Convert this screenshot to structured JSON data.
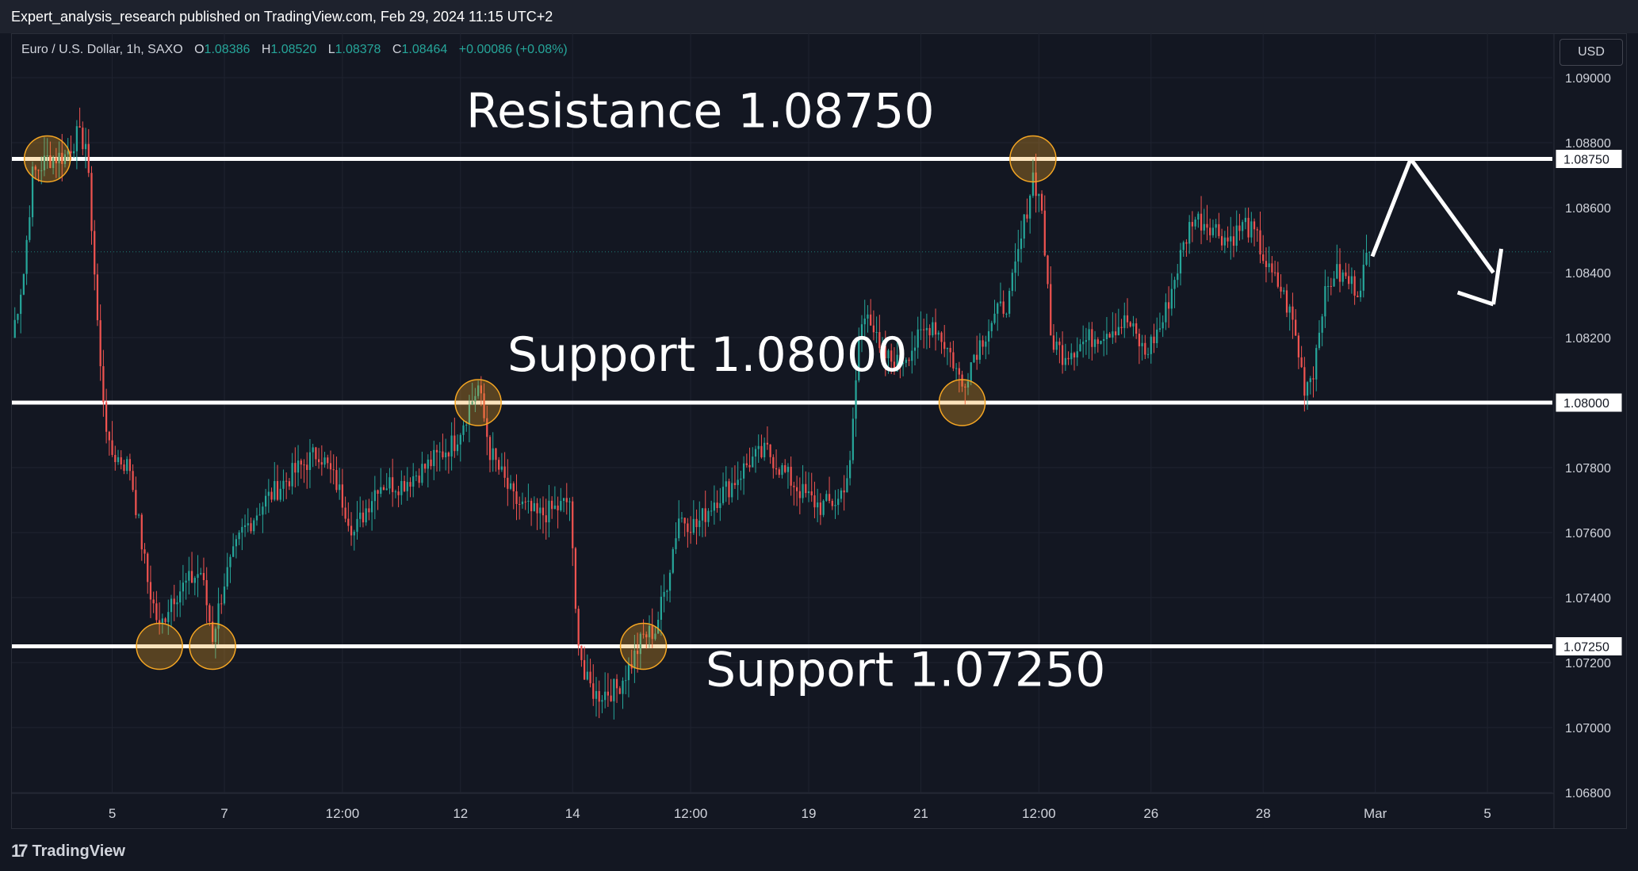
{
  "header": {
    "published": "Expert_analysis_research published on TradingView.com, Feb 29, 2024 11:15 UTC+2"
  },
  "legend": {
    "symbol": "Euro / U.S. Dollar, 1h, SAXO",
    "open_label": "O",
    "open": "1.08386",
    "high_label": "H",
    "high": "1.08520",
    "low_label": "L",
    "low": "1.08378",
    "close_label": "C",
    "close": "1.08464",
    "change": "+0.00086 (+0.08%)"
  },
  "currency_button": "USD",
  "branding": {
    "logo_icon": "17",
    "logo_text": "TradingView"
  },
  "colors": {
    "background": "#131722",
    "up_candle": "#26a69a",
    "down_candle": "#ef5350",
    "level_line": "#ffffff",
    "highlight_circle": "#f5a623",
    "axis_text": "#d1d4dc"
  },
  "chart_data": {
    "type": "candlestick",
    "y_axis": {
      "ylim": [
        1.068,
        1.0905
      ],
      "ticks": [
        "1.09000",
        "1.08800",
        "1.08600",
        "1.08400",
        "1.08200",
        "1.08000",
        "1.07800",
        "1.07600",
        "1.07400",
        "1.07200",
        "1.07000",
        "1.06800"
      ],
      "tick_values": [
        1.09,
        1.088,
        1.086,
        1.084,
        1.082,
        1.08,
        1.078,
        1.076,
        1.074,
        1.072,
        1.07,
        1.068
      ]
    },
    "x_axis": {
      "labels": [
        "5",
        "7",
        "12:00",
        "12",
        "14",
        "12:00",
        "19",
        "21",
        "12:00",
        "26",
        "28",
        "Mar",
        "5"
      ],
      "label_index": [
        34,
        72,
        112,
        152,
        190,
        230,
        270,
        308,
        348,
        386,
        424,
        462,
        500
      ]
    },
    "price_labels": [
      {
        "text": "1.08750",
        "value": 1.0875
      },
      {
        "text": "1.08000",
        "value": 1.08
      },
      {
        "text": "1.07250",
        "value": 1.0725
      }
    ],
    "horizontal_levels": [
      1.0875,
      1.08,
      1.0725
    ],
    "annotations": [
      {
        "text": "Resistance 1.08750",
        "value": 1.0875
      },
      {
        "text": "Support 1.08000",
        "value": 1.08
      },
      {
        "text": "Support 1.07250",
        "value": 1.0725
      }
    ],
    "highlight_points": [
      {
        "index": 12,
        "value": 1.0875
      },
      {
        "index": 50,
        "value": 1.0725
      },
      {
        "index": 68,
        "value": 1.0725
      },
      {
        "index": 158,
        "value": 1.08
      },
      {
        "index": 214,
        "value": 1.0725
      },
      {
        "index": 322,
        "value": 1.08
      },
      {
        "index": 346,
        "value": 1.0875
      }
    ],
    "current_price": 1.08464,
    "projection": [
      {
        "index": 461,
        "value": 1.0845
      },
      {
        "index": 474,
        "value": 1.0875
      },
      {
        "index": 502,
        "value": 1.084
      }
    ],
    "bars_total": 522,
    "close_path": [
      [
        0,
        1.082
      ],
      [
        4,
        1.084
      ],
      [
        7,
        1.087
      ],
      [
        12,
        1.0875
      ],
      [
        18,
        1.0876
      ],
      [
        22,
        1.0882
      ],
      [
        25,
        1.088
      ],
      [
        27,
        1.0855
      ],
      [
        30,
        1.081
      ],
      [
        33,
        1.0785
      ],
      [
        40,
        1.078
      ],
      [
        46,
        1.0745
      ],
      [
        50,
        1.073
      ],
      [
        54,
        1.074
      ],
      [
        60,
        1.0745
      ],
      [
        64,
        1.0748
      ],
      [
        68,
        1.0728
      ],
      [
        72,
        1.0745
      ],
      [
        78,
        1.076
      ],
      [
        86,
        1.077
      ],
      [
        95,
        1.0778
      ],
      [
        104,
        1.0785
      ],
      [
        110,
        1.0775
      ],
      [
        116,
        1.076
      ],
      [
        124,
        1.0775
      ],
      [
        132,
        1.0775
      ],
      [
        140,
        1.078
      ],
      [
        150,
        1.0788
      ],
      [
        158,
        1.0805
      ],
      [
        162,
        1.0785
      ],
      [
        170,
        1.077
      ],
      [
        178,
        1.0765
      ],
      [
        186,
        1.0768
      ],
      [
        189,
        1.077
      ],
      [
        191,
        1.0735
      ],
      [
        194,
        1.0715
      ],
      [
        198,
        1.071
      ],
      [
        205,
        1.0712
      ],
      [
        210,
        1.072
      ],
      [
        214,
        1.0728
      ],
      [
        218,
        1.073
      ],
      [
        222,
        1.0745
      ],
      [
        226,
        1.0765
      ],
      [
        232,
        1.0762
      ],
      [
        238,
        1.077
      ],
      [
        244,
        1.0775
      ],
      [
        250,
        1.0782
      ],
      [
        256,
        1.0785
      ],
      [
        262,
        1.0778
      ],
      [
        268,
        1.0772
      ],
      [
        274,
        1.0768
      ],
      [
        280,
        1.077
      ],
      [
        284,
        1.078
      ],
      [
        287,
        1.082
      ],
      [
        290,
        1.083
      ],
      [
        294,
        1.0815
      ],
      [
        300,
        1.0812
      ],
      [
        306,
        1.0818
      ],
      [
        312,
        1.0825
      ],
      [
        318,
        1.0815
      ],
      [
        322,
        1.0805
      ],
      [
        326,
        1.0815
      ],
      [
        332,
        1.0825
      ],
      [
        338,
        1.0832
      ],
      [
        342,
        1.085
      ],
      [
        346,
        1.087
      ],
      [
        349,
        1.086
      ],
      [
        352,
        1.082
      ],
      [
        356,
        1.0815
      ],
      [
        362,
        1.0818
      ],
      [
        370,
        1.0822
      ],
      [
        378,
        1.0825
      ],
      [
        384,
        1.0815
      ],
      [
        390,
        1.0825
      ],
      [
        396,
        1.0845
      ],
      [
        400,
        1.0857
      ],
      [
        406,
        1.0855
      ],
      [
        412,
        1.085
      ],
      [
        418,
        1.0855
      ],
      [
        422,
        1.085
      ],
      [
        426,
        1.084
      ],
      [
        430,
        1.0835
      ],
      [
        434,
        1.0825
      ],
      [
        438,
        1.0805
      ],
      [
        441,
        1.081
      ],
      [
        444,
        1.083
      ],
      [
        448,
        1.084
      ],
      [
        452,
        1.0838
      ],
      [
        456,
        1.0835
      ],
      [
        460,
        1.08464
      ]
    ]
  }
}
